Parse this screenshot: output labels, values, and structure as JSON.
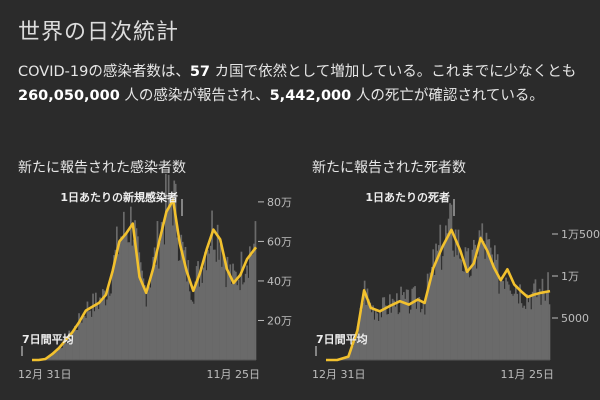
{
  "header": {
    "title": "世界の日次統計",
    "summary": {
      "p1": "COVID-19の感染者数は、",
      "countries": "57",
      "p2": " カ国で依然として増加している。これまでに少なくとも ",
      "cases": "260,050,000",
      "p3": " 人の感染が報告され、",
      "deaths": "5,442,000",
      "p4": " 人の死亡が確認されている。"
    }
  },
  "colors": {
    "background": "#2b2b2b",
    "bars": "#6a6a6a",
    "line": "#f2c12e",
    "text": "#e6e6e6",
    "axis": "#bdbdbd"
  },
  "chart_data": [
    {
      "type": "bar",
      "title": "新たに報告された感染者数",
      "x_start": "12月 31日",
      "x_end": "11月 25日",
      "ylim": [
        0,
        85
      ],
      "yunit": "万",
      "yticks": [
        20,
        40,
        60,
        80
      ],
      "ytick_labels": [
        "20万",
        "40万",
        "60万",
        "80万"
      ],
      "annotations": {
        "bars": "1日あたりの新規感染者",
        "avg": "7日間平均"
      },
      "series_avg": {
        "name": "7日間平均",
        "x": [
          0,
          0.03,
          0.06,
          0.09,
          0.12,
          0.15,
          0.18,
          0.21,
          0.24,
          0.27,
          0.3,
          0.33,
          0.36,
          0.39,
          0.42,
          0.45,
          0.48,
          0.51,
          0.54,
          0.57,
          0.6,
          0.63,
          0.66,
          0.69,
          0.72,
          0.75,
          0.78,
          0.81,
          0.84,
          0.87,
          0.9,
          0.93,
          0.96,
          1.0
        ],
        "values": [
          0,
          0,
          0.5,
          3,
          6,
          10,
          14,
          19,
          25,
          27,
          29,
          33,
          45,
          60,
          64,
          69,
          42,
          34,
          46,
          61,
          75,
          81,
          59,
          45,
          35,
          44,
          56,
          66,
          61,
          46,
          39,
          43,
          51,
          57
        ]
      }
    },
    {
      "type": "bar",
      "title": "新たに報告された死者数",
      "x_start": "12月 31日",
      "x_end": "11月 25日",
      "ylim": [
        0,
        20000
      ],
      "yticks": [
        5000,
        10000,
        15000
      ],
      "ytick_labels": [
        "5000",
        "1万",
        "1万5000"
      ],
      "annotations": {
        "bars": "1日あたりの死者",
        "avg": "7日間平均"
      },
      "series_avg": {
        "name": "7日間平均",
        "x": [
          0,
          0.05,
          0.1,
          0.14,
          0.17,
          0.2,
          0.24,
          0.29,
          0.33,
          0.37,
          0.41,
          0.44,
          0.48,
          0.52,
          0.56,
          0.6,
          0.63,
          0.66,
          0.69,
          0.72,
          0.75,
          0.78,
          0.81,
          0.84,
          0.87,
          0.9,
          0.93,
          0.96,
          1.0
        ],
        "values": [
          0,
          0,
          400,
          3500,
          8300,
          6200,
          5800,
          6500,
          7000,
          6600,
          7200,
          6800,
          11000,
          13500,
          15500,
          13000,
          10500,
          11500,
          14500,
          13000,
          11000,
          9500,
          10800,
          9000,
          8200,
          7500,
          7800,
          8000,
          8200
        ]
      }
    }
  ]
}
